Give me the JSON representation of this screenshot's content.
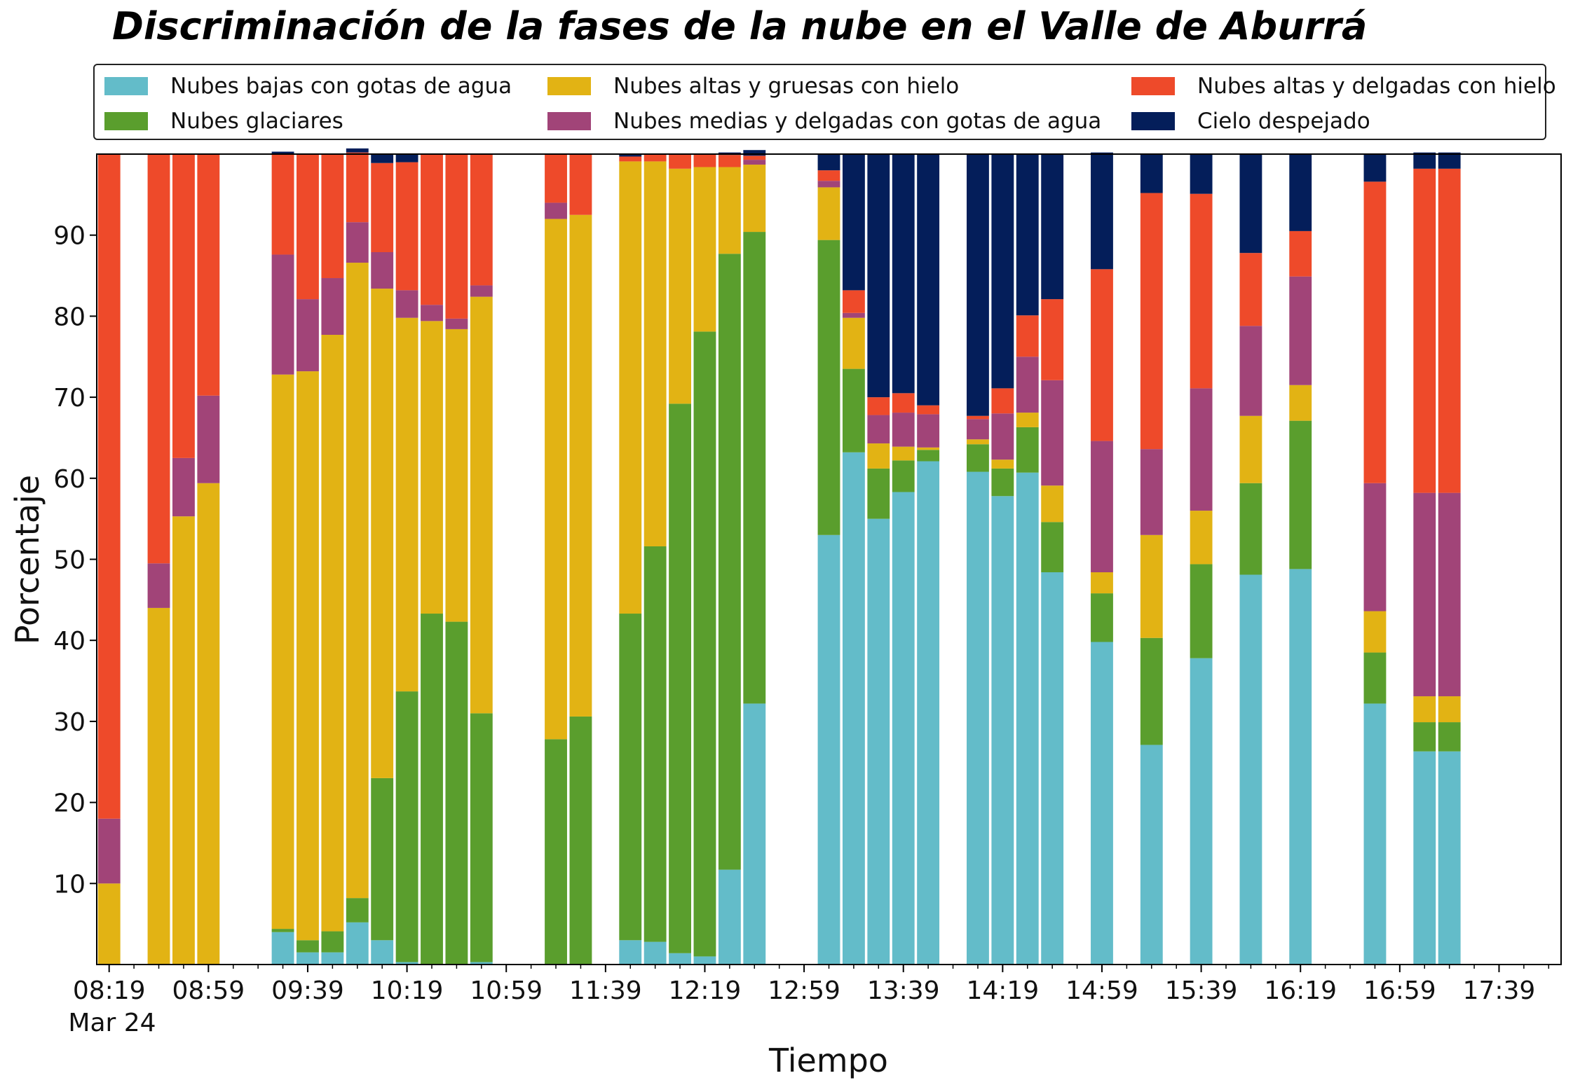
{
  "chart_data": {
    "type": "bar",
    "stacked": true,
    "title": "Discriminación de la fases de la nube en el Valle de Aburrá",
    "xlabel": "Tiempo",
    "ylabel": "Porcentaje",
    "ylim": [
      0,
      100
    ],
    "yticks": [
      10,
      20,
      30,
      40,
      50,
      60,
      70,
      80,
      90
    ],
    "x_start": "08:14",
    "x_end": "18:04",
    "x_tick_step_minutes": 40,
    "x_ticks": [
      "08:19",
      "08:59",
      "09:39",
      "10:19",
      "10:59",
      "11:39",
      "12:19",
      "12:59",
      "13:39",
      "14:19",
      "14:59",
      "15:39",
      "16:19",
      "16:59",
      "17:39"
    ],
    "x_date_label": "Mar 24",
    "bar_width_minutes": 9,
    "grid": false,
    "legend_position": "top",
    "times": [
      "08:19",
      "08:39",
      "08:49",
      "08:59",
      "09:29",
      "09:39",
      "09:49",
      "09:59",
      "10:09",
      "10:19",
      "10:29",
      "10:39",
      "10:49",
      "11:19",
      "11:29",
      "11:49",
      "11:59",
      "12:09",
      "12:19",
      "12:29",
      "12:39",
      "13:09",
      "13:19",
      "13:29",
      "13:39",
      "13:49",
      "14:09",
      "14:19",
      "14:29",
      "14:39",
      "14:59",
      "15:19",
      "15:39",
      "15:59",
      "16:19",
      "16:49",
      "17:09",
      "17:19"
    ],
    "series": [
      {
        "name": "Nubes bajas con gotas de agua",
        "color": "#63bcc9",
        "values": [
          0,
          0,
          0,
          0,
          4,
          1.5,
          1.5,
          5.2,
          3,
          0.3,
          0,
          0,
          0.3,
          0,
          0,
          3,
          2.8,
          1.4,
          1,
          11.7,
          32.2,
          53,
          63.2,
          55,
          58.3,
          62.1,
          60.8,
          57.8,
          60.7,
          48.4,
          39.8,
          27.1,
          37.8,
          48.1,
          48.8,
          32.2,
          26.3,
          26.3
        ]
      },
      {
        "name": "Nubes glaciares",
        "color": "#5a9e2d",
        "values": [
          0,
          0,
          0,
          0,
          0.4,
          1.5,
          2.6,
          3,
          20,
          33.4,
          43.3,
          42.3,
          30.7,
          27.8,
          30.6,
          40.3,
          48.8,
          67.8,
          77.1,
          76,
          58.2,
          36.4,
          10.3,
          6.2,
          3.9,
          1.4,
          3.4,
          3.4,
          5.6,
          6.2,
          6,
          13.2,
          11.6,
          11.3,
          18.3,
          6.3,
          3.6,
          3.6
        ]
      },
      {
        "name": "Nubes altas y gruesas con hielo",
        "color": "#e2b314",
        "values": [
          10,
          44,
          55.3,
          59.4,
          68.4,
          70.2,
          73.6,
          78.4,
          60.4,
          46.1,
          36.1,
          36.1,
          51.4,
          64.2,
          61.9,
          55.8,
          47.5,
          29,
          20.3,
          10.7,
          8.3,
          6.5,
          6.3,
          3.1,
          1.7,
          0.3,
          0.6,
          1.1,
          1.8,
          4.5,
          2.6,
          12.7,
          6.6,
          8.3,
          4.4,
          5.1,
          3.2,
          3.2
        ]
      },
      {
        "name": "Nubes medias y delgadas con gotas de agua",
        "color": "#a14478",
        "values": [
          8,
          5.5,
          7.2,
          10.8,
          14.8,
          8.9,
          7,
          5,
          4.5,
          3.4,
          2,
          1.3,
          1.4,
          2,
          0,
          0,
          0,
          0,
          0,
          0,
          0.6,
          0.8,
          0.6,
          3.5,
          4.2,
          4.1,
          2.5,
          5.7,
          6.9,
          13,
          16.2,
          10.6,
          15.1,
          11.1,
          13.4,
          15.8,
          25.1,
          25.1
        ]
      },
      {
        "name": "Nubes altas y delgadas con hielo",
        "color": "#ee4a2a",
        "values": [
          82,
          50.5,
          37.5,
          29.8,
          12.4,
          17.9,
          15.3,
          8.6,
          11,
          15.8,
          18.6,
          20.3,
          16.2,
          6,
          7.5,
          0.6,
          0.9,
          1.8,
          1.6,
          1.5,
          0.5,
          1.3,
          2.8,
          2.2,
          2.4,
          1.1,
          0.4,
          3.1,
          5.1,
          10,
          21.2,
          31.6,
          24,
          9,
          5.6,
          37.2,
          40,
          40
        ]
      },
      {
        "name": "Cielo despejado",
        "color": "#041e5a",
        "values": [
          0,
          0,
          0,
          0,
          0.3,
          0,
          0,
          0.5,
          1.1,
          1,
          0,
          0,
          0,
          0,
          0,
          0.3,
          0,
          0,
          0,
          0.3,
          0.7,
          2,
          16.8,
          30,
          29.5,
          31,
          32.3,
          28.9,
          19.9,
          17.9,
          14.4,
          4.8,
          4.9,
          12.2,
          9.5,
          3.4,
          2,
          2
        ]
      }
    ]
  }
}
